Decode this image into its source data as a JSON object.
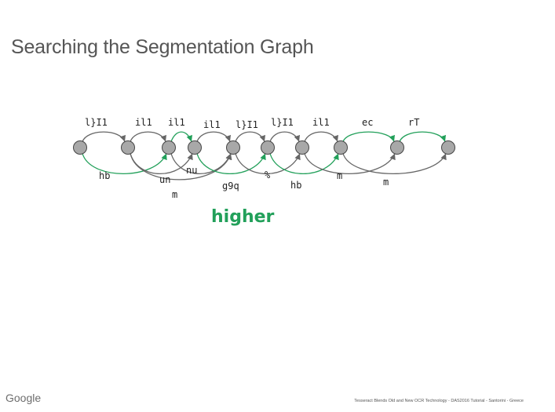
{
  "slide": {
    "title": "Searching the Segmentation Graph",
    "highlight_text": "higher",
    "footer_logo": "Google",
    "footer_caption": "Tesseract Blends Old and New OCR Technology - DAS2016 Tutorial - Santorini - Greece"
  },
  "diagram": {
    "node_count": 10,
    "colors": {
      "node_fill": "#a8a8a8",
      "node_stroke": "#444444",
      "edge_gray": "#666666",
      "edge_green": "#22a05a"
    },
    "top_labels": [
      "l}I1",
      "il1",
      "il1",
      "il1",
      "l}I1",
      "l}I1",
      "il1",
      "ec",
      "rT"
    ],
    "bottom_labels": [
      "hb",
      "un",
      "nu",
      "m",
      "g9q",
      "%",
      "hb",
      "m",
      "m"
    ],
    "edges": [
      {
        "from": 0,
        "to": 1,
        "color": "gray"
      },
      {
        "from": 1,
        "to": 2,
        "color": "gray"
      },
      {
        "from": 2,
        "to": 3,
        "color": "green"
      },
      {
        "from": 3,
        "to": 4,
        "color": "gray"
      },
      {
        "from": 4,
        "to": 5,
        "color": "gray"
      },
      {
        "from": 5,
        "to": 6,
        "color": "gray"
      },
      {
        "from": 6,
        "to": 7,
        "color": "gray"
      },
      {
        "from": 7,
        "to": 8,
        "color": "green"
      },
      {
        "from": 8,
        "to": 9,
        "color": "green"
      },
      {
        "from": 0,
        "to": 2,
        "color": "green"
      },
      {
        "from": 1,
        "to": 3,
        "color": "gray"
      },
      {
        "from": 1,
        "to": 4,
        "color": "gray"
      },
      {
        "from": 2,
        "to": 4,
        "color": "gray"
      },
      {
        "from": 3,
        "to": 5,
        "color": "green"
      },
      {
        "from": 4,
        "to": 6,
        "color": "gray"
      },
      {
        "from": 5,
        "to": 7,
        "color": "green"
      },
      {
        "from": 6,
        "to": 8,
        "color": "gray"
      },
      {
        "from": 7,
        "to": 9,
        "color": "gray"
      }
    ]
  }
}
